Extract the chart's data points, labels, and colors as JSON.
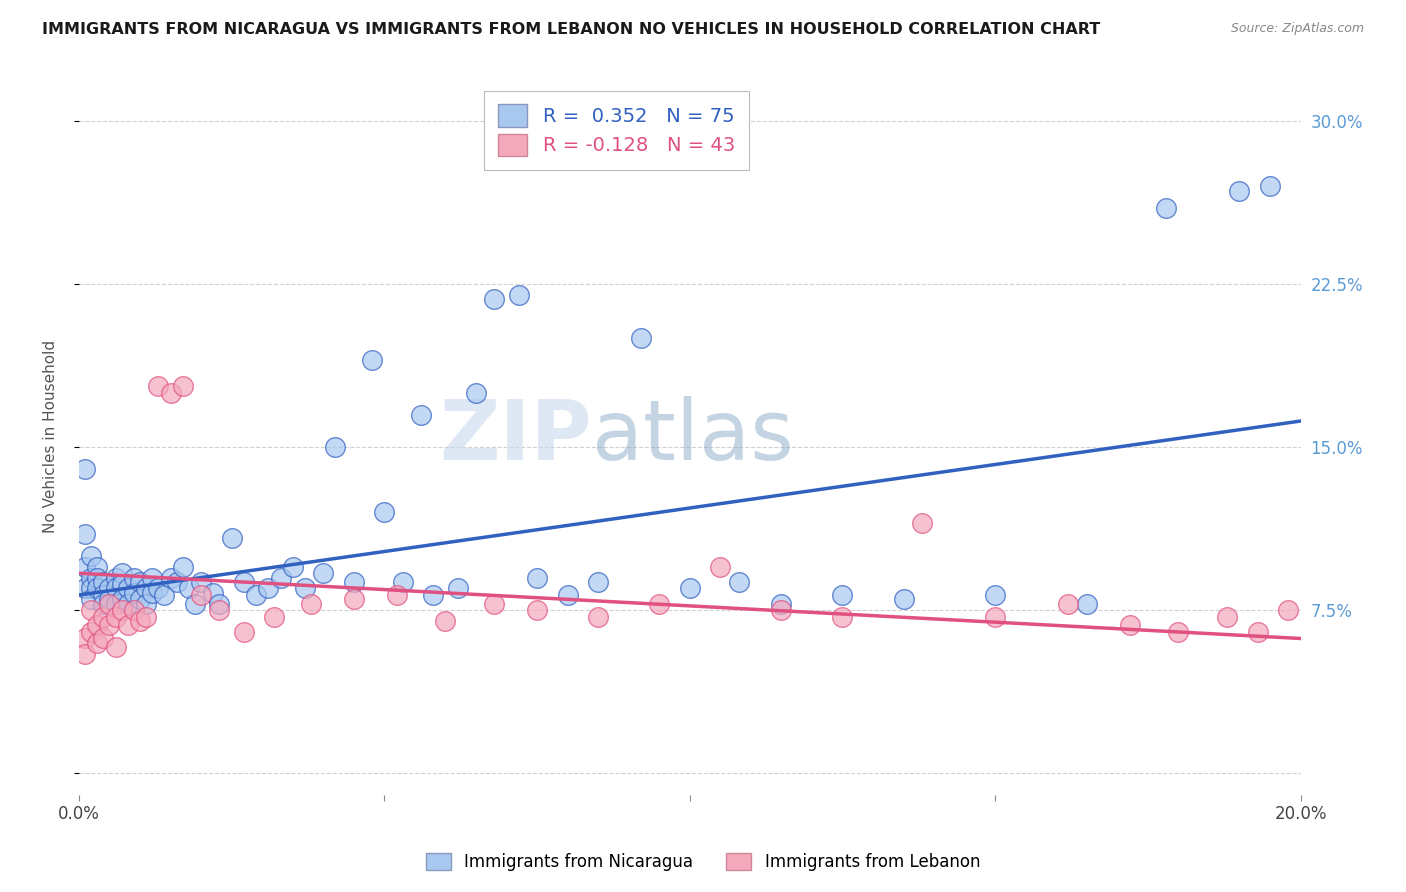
{
  "title": "IMMIGRANTS FROM NICARAGUA VS IMMIGRANTS FROM LEBANON NO VEHICLES IN HOUSEHOLD CORRELATION CHART",
  "source": "Source: ZipAtlas.com",
  "ylabel": "No Vehicles in Household",
  "xlim": [
    0.0,
    0.2
  ],
  "ylim": [
    -0.01,
    0.32
  ],
  "nicaragua_R": 0.352,
  "nicaragua_N": 75,
  "lebanon_R": -0.128,
  "lebanon_N": 43,
  "nicaragua_color": "#A8C8F0",
  "lebanon_color": "#F4A8BC",
  "nicaragua_line_color": "#3060C0",
  "lebanon_line_color": "#E05080",
  "watermark_zip": "ZIP",
  "watermark_atlas": "atlas",
  "nicaragua_x": [
    0.001,
    0.001,
    0.001,
    0.002,
    0.002,
    0.002,
    0.002,
    0.003,
    0.003,
    0.003,
    0.004,
    0.004,
    0.004,
    0.005,
    0.005,
    0.006,
    0.006,
    0.006,
    0.007,
    0.007,
    0.007,
    0.008,
    0.008,
    0.009,
    0.009,
    0.01,
    0.01,
    0.011,
    0.011,
    0.012,
    0.012,
    0.013,
    0.014,
    0.015,
    0.016,
    0.017,
    0.018,
    0.019,
    0.02,
    0.022,
    0.023,
    0.025,
    0.027,
    0.029,
    0.031,
    0.033,
    0.035,
    0.037,
    0.04,
    0.042,
    0.045,
    0.048,
    0.05,
    0.053,
    0.056,
    0.058,
    0.062,
    0.065,
    0.068,
    0.072,
    0.075,
    0.08,
    0.085,
    0.092,
    0.1,
    0.108,
    0.115,
    0.125,
    0.135,
    0.15,
    0.165,
    0.178,
    0.19,
    0.195,
    0.001
  ],
  "nicaragua_y": [
    0.11,
    0.095,
    0.085,
    0.1,
    0.09,
    0.085,
    0.08,
    0.095,
    0.09,
    0.085,
    0.088,
    0.082,
    0.078,
    0.085,
    0.08,
    0.09,
    0.085,
    0.078,
    0.092,
    0.087,
    0.08,
    0.085,
    0.078,
    0.09,
    0.083,
    0.088,
    0.08,
    0.085,
    0.078,
    0.09,
    0.083,
    0.085,
    0.082,
    0.09,
    0.088,
    0.095,
    0.085,
    0.078,
    0.088,
    0.083,
    0.078,
    0.108,
    0.088,
    0.082,
    0.085,
    0.09,
    0.095,
    0.085,
    0.092,
    0.15,
    0.088,
    0.19,
    0.12,
    0.088,
    0.165,
    0.082,
    0.085,
    0.175,
    0.218,
    0.22,
    0.09,
    0.082,
    0.088,
    0.2,
    0.085,
    0.088,
    0.078,
    0.082,
    0.08,
    0.082,
    0.078,
    0.26,
    0.268,
    0.27,
    0.14
  ],
  "lebanon_x": [
    0.001,
    0.001,
    0.002,
    0.002,
    0.003,
    0.003,
    0.004,
    0.004,
    0.005,
    0.005,
    0.006,
    0.006,
    0.007,
    0.008,
    0.009,
    0.01,
    0.011,
    0.013,
    0.015,
    0.017,
    0.02,
    0.023,
    0.027,
    0.032,
    0.038,
    0.045,
    0.052,
    0.06,
    0.068,
    0.075,
    0.085,
    0.095,
    0.105,
    0.115,
    0.125,
    0.138,
    0.15,
    0.162,
    0.172,
    0.18,
    0.188,
    0.193,
    0.198
  ],
  "lebanon_y": [
    0.062,
    0.055,
    0.075,
    0.065,
    0.068,
    0.06,
    0.072,
    0.062,
    0.078,
    0.068,
    0.072,
    0.058,
    0.075,
    0.068,
    0.075,
    0.07,
    0.072,
    0.178,
    0.175,
    0.178,
    0.082,
    0.075,
    0.065,
    0.072,
    0.078,
    0.08,
    0.082,
    0.07,
    0.078,
    0.075,
    0.072,
    0.078,
    0.095,
    0.075,
    0.072,
    0.115,
    0.072,
    0.078,
    0.068,
    0.065,
    0.072,
    0.065,
    0.075
  ]
}
